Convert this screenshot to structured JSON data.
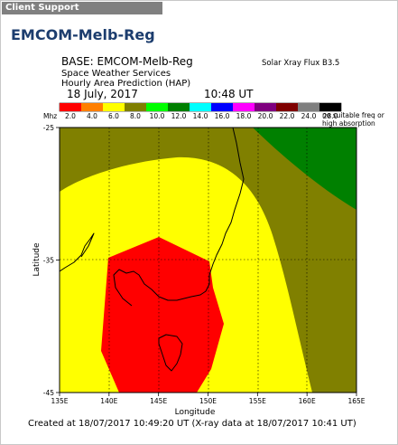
{
  "header": {
    "section_label": "Client Support"
  },
  "page": {
    "title": "EMCOM-Melb-Reg"
  },
  "map": {
    "base_line": "BASE: EMCOM-Melb-Reg",
    "org_line": "Space Weather Services",
    "product_line": "Hourly Area Prediction (HAP)",
    "date": "18 July, 2017",
    "time": "10:48 UT",
    "solar_flux": "Solar Xray Flux B3.5",
    "legend_unit": "Mhz",
    "legend": [
      {
        "label": "2.0",
        "color": "#ff0000"
      },
      {
        "label": "4.0",
        "color": "#ff7f00"
      },
      {
        "label": "6.0",
        "color": "#ffff00"
      },
      {
        "label": "8.0",
        "color": "#7f7f00"
      },
      {
        "label": "10.0",
        "color": "#00ff00"
      },
      {
        "label": "12.0",
        "color": "#007f00"
      },
      {
        "label": "14.0",
        "color": "#00ffff"
      },
      {
        "label": "16.0",
        "color": "#0000ff"
      },
      {
        "label": "18.0",
        "color": "#ff00ff"
      },
      {
        "label": "20.0",
        "color": "#7f007f"
      },
      {
        "label": "22.0",
        "color": "#7f0000"
      },
      {
        "label": "24.0",
        "color": "#7f7f7f"
      },
      {
        "label": "28.0",
        "color": "#000000"
      }
    ],
    "legend_nofreq": "no suitable freq or",
    "legend_absorption": "high absorption",
    "lat_label": "Latitude",
    "lon_label": "Longitude",
    "lat_range": [
      -45,
      -25
    ],
    "lon_range": [
      135,
      165
    ],
    "lat_ticks": [
      {
        "value": -25,
        "label": "-25"
      },
      {
        "value": -35,
        "label": "-35"
      },
      {
        "value": -45,
        "label": "-45"
      }
    ],
    "lon_ticks": [
      {
        "value": 135,
        "label": "135E"
      },
      {
        "value": 140,
        "label": "140E"
      },
      {
        "value": 145,
        "label": "145E"
      },
      {
        "value": 150,
        "label": "150E"
      },
      {
        "value": 155,
        "label": "155E"
      },
      {
        "value": 160,
        "label": "160E"
      },
      {
        "value": 165,
        "label": "165E"
      }
    ],
    "zone_colors": {
      "olive": "#808000",
      "yellow": "#ffff00",
      "red": "#ff0000",
      "green": "#008000"
    },
    "footer": "Created at 18/07/2017 10:49:20 UT (X-ray data at 18/07/2017 10:41 UT)"
  }
}
